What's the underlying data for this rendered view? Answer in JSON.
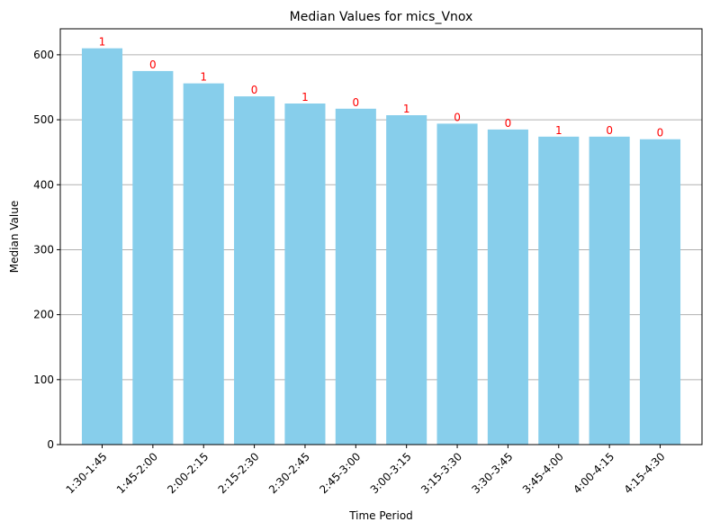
{
  "chart_data": {
    "type": "bar",
    "title": "Median Values for mics_Vnox",
    "xlabel": "Time Period",
    "ylabel": "Median Value",
    "categories": [
      "1:30-1:45",
      "1:45-2:00",
      "2:00-2:15",
      "2:15-2:30",
      "2:30-2:45",
      "2:45-3:00",
      "3:00-3:15",
      "3:15-3:30",
      "3:30-3:45",
      "3:45-4:00",
      "4:00-4:15",
      "4:15-4:30"
    ],
    "values": [
      610,
      575,
      556,
      536,
      525,
      517,
      507,
      494,
      485,
      474,
      474,
      470
    ],
    "bar_labels": [
      "1",
      "0",
      "1",
      "0",
      "1",
      "0",
      "1",
      "0",
      "0",
      "1",
      "0",
      "0"
    ],
    "yticks": [
      0,
      100,
      200,
      300,
      400,
      500,
      600
    ],
    "ylim": [
      0,
      640
    ],
    "grid": "y",
    "colors": {
      "bar": "#87ceeb",
      "bar_label": "#ff0000",
      "grid": "#b0b0b0"
    }
  }
}
